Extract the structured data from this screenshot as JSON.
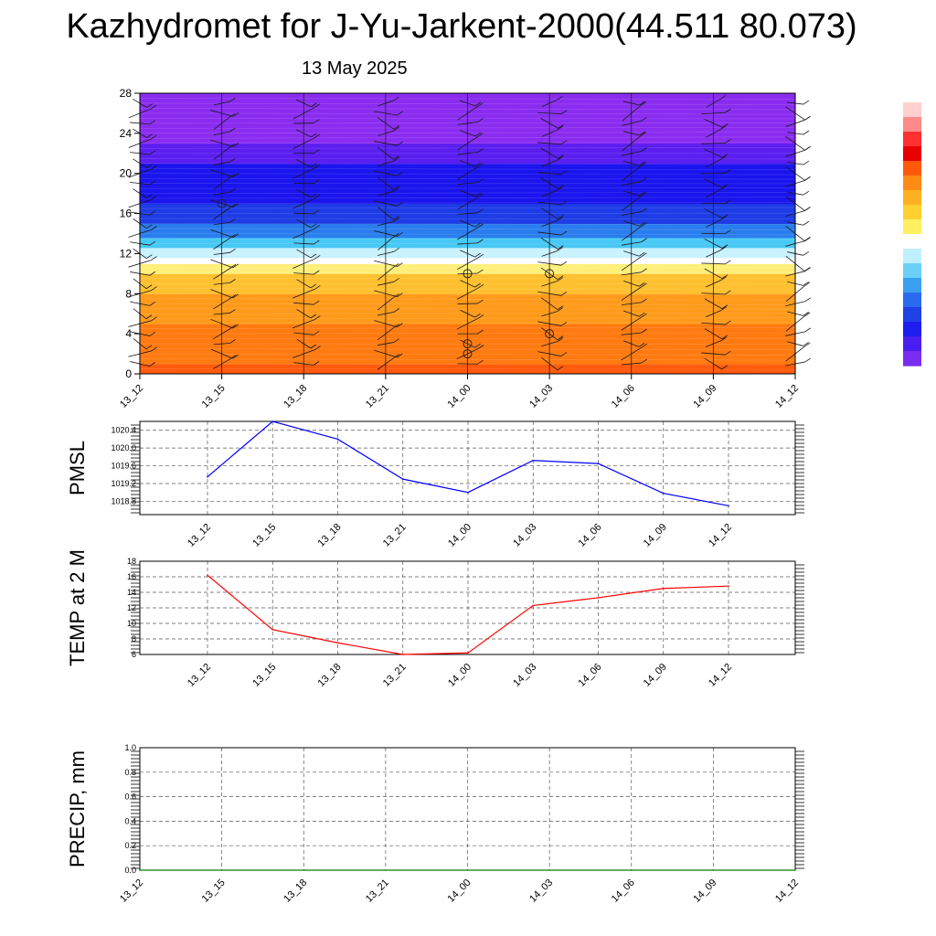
{
  "header": {
    "title": "Kazhydromet for J-Yu-Jarkent-2000(44.511 80.073)",
    "date": "13 May 2025"
  },
  "chart_data": [
    {
      "id": "cross-section",
      "type": "heatmap",
      "description_units": "temperature-colored vertical profile with wind barbs",
      "x_ticks": [
        "13_12",
        "13_15",
        "13_18",
        "13_21",
        "14_00",
        "14_03",
        "14_06",
        "14_09",
        "14_12"
      ],
      "y_ticks": [
        "0",
        "4",
        "8",
        "12",
        "16",
        "20",
        "24",
        "28"
      ],
      "ylim": [
        0,
        28
      ],
      "bands": [
        {
          "from": 0,
          "to": 1,
          "color": "#ff5a0c"
        },
        {
          "from": 1,
          "to": 5,
          "color": "#ff7a10"
        },
        {
          "from": 5,
          "to": 8,
          "color": "#ff9a1a"
        },
        {
          "from": 8,
          "to": 10,
          "color": "#ffc030"
        },
        {
          "from": 10,
          "to": 11,
          "color": "#ffef7a"
        },
        {
          "from": 11,
          "to": 11.6,
          "color": "#ffffff"
        },
        {
          "from": 11.6,
          "to": 12.6,
          "color": "#c9f2ff"
        },
        {
          "from": 12.6,
          "to": 13.6,
          "color": "#48c8f4"
        },
        {
          "from": 13.6,
          "to": 15,
          "color": "#2a7dee"
        },
        {
          "from": 15,
          "to": 17,
          "color": "#1e3ce6"
        },
        {
          "from": 17,
          "to": 21,
          "color": "#1a14ee"
        },
        {
          "from": 21,
          "to": 23,
          "color": "#5a1ef0"
        },
        {
          "from": 23,
          "to": 28,
          "color": "#8a2cf0"
        }
      ],
      "calm_markers": [
        {
          "x": "13_15",
          "y": 17
        },
        {
          "x": "14_00",
          "y": 10
        },
        {
          "x": "14_00",
          "y": 3
        },
        {
          "x": "14_00",
          "y": 2
        },
        {
          "x": "14_03",
          "y": 10
        },
        {
          "x": "14_03",
          "y": 4
        }
      ]
    },
    {
      "id": "pmsl",
      "type": "line",
      "ylabel": "PMSL",
      "x": [
        "13_12",
        "13_15",
        "13_18",
        "13_21",
        "14_00",
        "14_03",
        "14_06",
        "14_09",
        "14_12"
      ],
      "y_ticks": [
        "1018.8",
        "1019.2",
        "1019.6",
        "1020.0",
        "1020.4"
      ],
      "ylim": [
        1018.5,
        1020.6
      ],
      "values": [
        1019.35,
        1020.6,
        1020.2,
        1019.3,
        1019.0,
        1019.72,
        1019.65,
        1018.98,
        1018.7
      ],
      "color": "#0000ff"
    },
    {
      "id": "temp2m",
      "type": "line",
      "ylabel": "TEMP at 2 M",
      "x": [
        "13_12",
        "13_15",
        "13_18",
        "13_21",
        "14_00",
        "14_03",
        "14_06",
        "14_09",
        "14_12"
      ],
      "y_ticks": [
        "6",
        "8",
        "10",
        "12",
        "14",
        "16",
        "18"
      ],
      "ylim": [
        6,
        18
      ],
      "values": [
        16.2,
        9.2,
        7.5,
        6.0,
        6.2,
        12.3,
        13.3,
        14.5,
        14.8
      ],
      "color": "#ff0000"
    },
    {
      "id": "precip",
      "type": "line",
      "ylabel": "PRECIP, mm",
      "x_ticks": [
        "13_12",
        "13_15",
        "13_18",
        "13_21",
        "14_00",
        "14_03",
        "14_06",
        "14_09",
        "14_12"
      ],
      "y_ticks": [
        "0.0",
        "0.2",
        "0.4",
        "0.6",
        "0.8",
        "1.0"
      ],
      "ylim": [
        0,
        1
      ],
      "values": [
        0,
        0,
        0,
        0,
        0,
        0,
        0,
        0,
        0
      ],
      "color": "#008000"
    }
  ],
  "colorbar": {
    "colors": [
      "#ffd0d0",
      "#ff8a8a",
      "#ff3030",
      "#e80000",
      "#ff5a0c",
      "#ff8a14",
      "#ffb020",
      "#ffd030",
      "#fff060",
      "#ffffff",
      "#bfefff",
      "#6ad0f8",
      "#3aa0f0",
      "#2a6af0",
      "#2040e8",
      "#1e1ef0",
      "#4a1ef0",
      "#7a2cf0"
    ]
  }
}
